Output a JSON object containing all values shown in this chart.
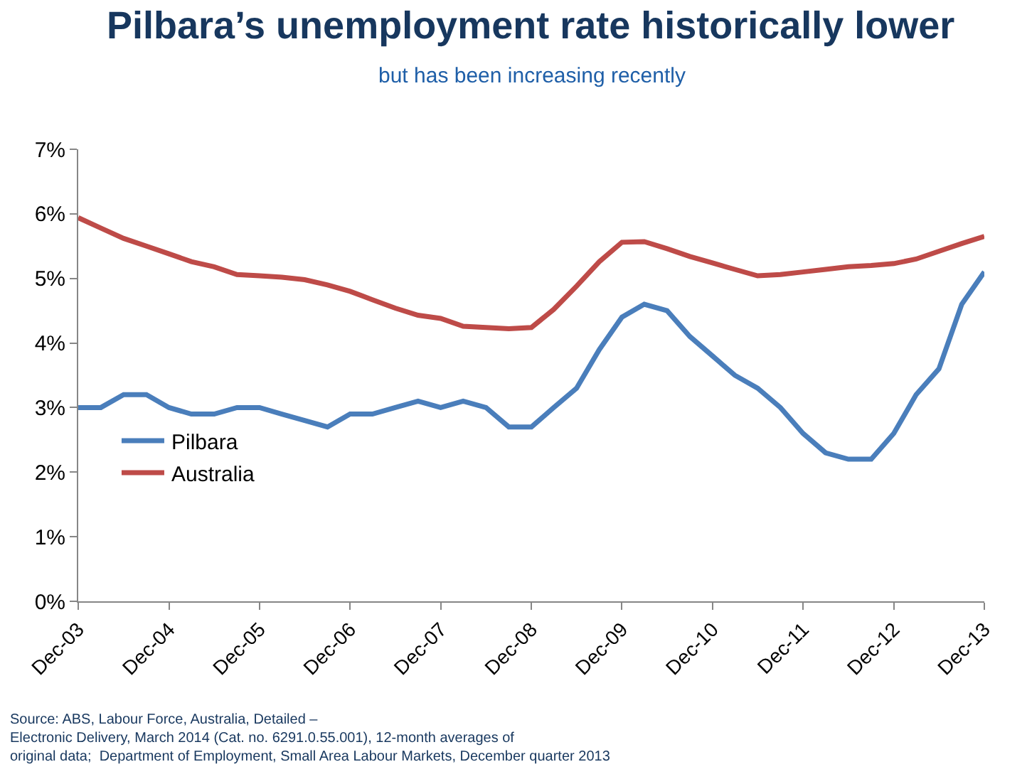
{
  "chart_data": {
    "type": "line",
    "title": "Pilbara’s unemployment rate historically lower",
    "subtitle": "but has been increasing recently",
    "x": [
      "2003-12",
      "2004-03",
      "2004-06",
      "2004-09",
      "2004-12",
      "2005-03",
      "2005-06",
      "2005-09",
      "2005-12",
      "2006-03",
      "2006-06",
      "2006-09",
      "2006-12",
      "2007-03",
      "2007-06",
      "2007-09",
      "2007-12",
      "2008-03",
      "2008-06",
      "2008-09",
      "2008-12",
      "2009-03",
      "2009-06",
      "2009-09",
      "2009-12",
      "2010-03",
      "2010-06",
      "2010-09",
      "2010-12",
      "2011-03",
      "2011-06",
      "2011-09",
      "2011-12",
      "2012-03",
      "2012-06",
      "2012-09",
      "2012-12",
      "2013-03",
      "2013-06",
      "2013-09",
      "2013-12"
    ],
    "series": [
      {
        "name": "Pilbara",
        "color": "#4a7ebb",
        "values": [
          3.0,
          3.0,
          3.2,
          3.2,
          3.0,
          2.9,
          2.9,
          3.0,
          3.0,
          2.9,
          2.8,
          2.7,
          2.9,
          2.9,
          3.0,
          3.1,
          3.0,
          3.1,
          3.0,
          2.7,
          2.7,
          3.0,
          3.3,
          3.9,
          4.4,
          4.6,
          4.5,
          4.1,
          3.8,
          3.5,
          3.3,
          3.0,
          2.6,
          2.3,
          2.2,
          2.2,
          2.6,
          3.2,
          3.6,
          4.6,
          5.1
        ]
      },
      {
        "name": "Australia",
        "color": "#be4b48",
        "values": [
          5.94,
          5.78,
          5.62,
          5.5,
          5.38,
          5.26,
          5.18,
          5.06,
          5.04,
          5.02,
          4.98,
          4.9,
          4.8,
          4.67,
          4.54,
          4.43,
          4.38,
          4.26,
          4.24,
          4.22,
          4.24,
          4.52,
          4.88,
          5.26,
          5.56,
          5.57,
          5.46,
          5.34,
          5.24,
          5.14,
          5.04,
          5.06,
          5.1,
          5.14,
          5.18,
          5.2,
          5.23,
          5.3,
          5.42,
          5.54,
          5.65
        ]
      }
    ],
    "xlim": [
      "2003-12",
      "2013-12"
    ],
    "xticks": [
      {
        "value": "2003-12",
        "label": "Dec-03"
      },
      {
        "value": "2004-12",
        "label": "Dec-04"
      },
      {
        "value": "2005-12",
        "label": "Dec-05"
      },
      {
        "value": "2006-12",
        "label": "Dec-06"
      },
      {
        "value": "2007-12",
        "label": "Dec-07"
      },
      {
        "value": "2008-12",
        "label": "Dec-08"
      },
      {
        "value": "2009-12",
        "label": "Dec-09"
      },
      {
        "value": "2010-12",
        "label": "Dec-10"
      },
      {
        "value": "2011-12",
        "label": "Dec-11"
      },
      {
        "value": "2012-12",
        "label": "Dec-12"
      },
      {
        "value": "2013-12",
        "label": "Dec-13"
      }
    ],
    "ylim": [
      0,
      7
    ],
    "yticks": [
      {
        "value": 0,
        "label": "0%"
      },
      {
        "value": 1,
        "label": "1%"
      },
      {
        "value": 2,
        "label": "2%"
      },
      {
        "value": 3,
        "label": "3%"
      },
      {
        "value": 4,
        "label": "4%"
      },
      {
        "value": 5,
        "label": "5%"
      },
      {
        "value": 6,
        "label": "6%"
      },
      {
        "value": 7,
        "label": "7%"
      }
    ],
    "grid": false,
    "legend": "left",
    "marker": "none",
    "line_style": "solid",
    "annotations": [
      "Source: ABS, Labour Force, Australia, Detailed –\nElectronic Delivery, March 2014 (Cat. no. 6291.0.55.001), 12-month averages of\noriginal data;  Department of Employment, Small Area Labour Markets, December quarter 2013"
    ]
  }
}
